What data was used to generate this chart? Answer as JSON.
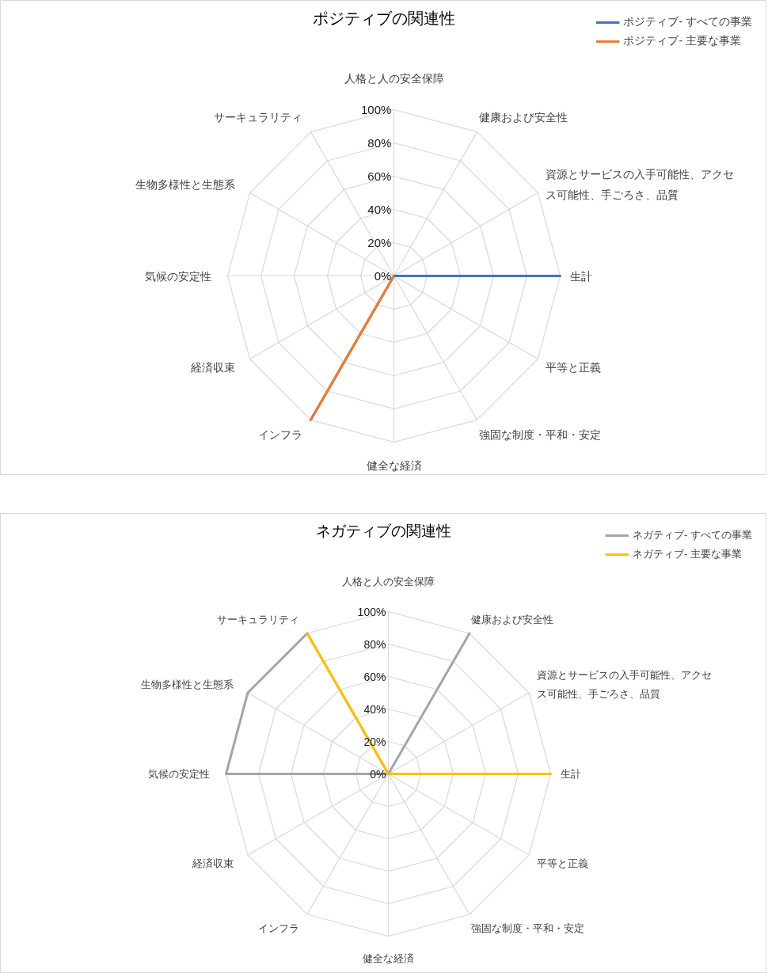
{
  "chart_data": [
    {
      "type": "radar",
      "title": "ポジティブの関連性",
      "categories": [
        "人格と人の安全保障",
        "健康および安全性",
        "資源とサービスの入手可能性、アクセス可能性、手ごろさ、品質",
        "生計",
        "平等と正義",
        "強固な制度・平和・安定",
        "健全な経済",
        "インフラ",
        "経済収束",
        "気候の安定性",
        "生物多様性と生態系",
        "サーキュラリティ"
      ],
      "series": [
        {
          "name": "ポジティブ- すべての事業",
          "color": "#4472c4",
          "values": [
            0,
            0,
            0,
            100,
            0,
            0,
            0,
            100,
            0,
            0,
            0,
            0
          ]
        },
        {
          "name": "ポジティブ- 主要な事業",
          "color": "#ed7d31",
          "values": [
            0,
            0,
            0,
            0,
            0,
            0,
            0,
            100,
            0,
            0,
            0,
            0
          ]
        }
      ],
      "ylim": [
        0,
        100
      ],
      "yticks": [
        {
          "value": 0,
          "label": "0%"
        },
        {
          "value": 20,
          "label": "20%"
        },
        {
          "value": 40,
          "label": "40%"
        },
        {
          "value": 60,
          "label": "60%"
        },
        {
          "value": 80,
          "label": "80%"
        },
        {
          "value": 100,
          "label": "100%"
        }
      ],
      "grid": true,
      "legend": "top right"
    },
    {
      "type": "radar",
      "title": "ネガティブの関連性",
      "categories": [
        "人格と人の安全保障",
        "健康および安全性",
        "資源とサービスの入手可能性、アクセス可能性、手ごろさ、品質",
        "生計",
        "平等と正義",
        "強固な制度・平和・安定",
        "健全な経済",
        "インフラ",
        "経済収束",
        "気候の安定性",
        "生物多様性と生態系",
        "サーキュラリティ"
      ],
      "series": [
        {
          "name": "ネガティブ- すべての事業",
          "color": "#a5a5a5",
          "values": [
            0,
            100,
            0,
            0,
            0,
            0,
            0,
            0,
            0,
            100,
            100,
            100
          ]
        },
        {
          "name": "ネガティブ- 主要な事業",
          "color": "#ffc000",
          "values": [
            0,
            0,
            0,
            100,
            0,
            0,
            0,
            0,
            0,
            0,
            0,
            100
          ]
        }
      ],
      "ylim": [
        0,
        100
      ],
      "yticks": [
        {
          "value": 0,
          "label": "0%"
        },
        {
          "value": 20,
          "label": "20%"
        },
        {
          "value": 40,
          "label": "40%"
        },
        {
          "value": 60,
          "label": "60%"
        },
        {
          "value": 80,
          "label": "80%"
        },
        {
          "value": 100,
          "label": "100%"
        }
      ],
      "grid": true,
      "legend": "top right"
    }
  ]
}
